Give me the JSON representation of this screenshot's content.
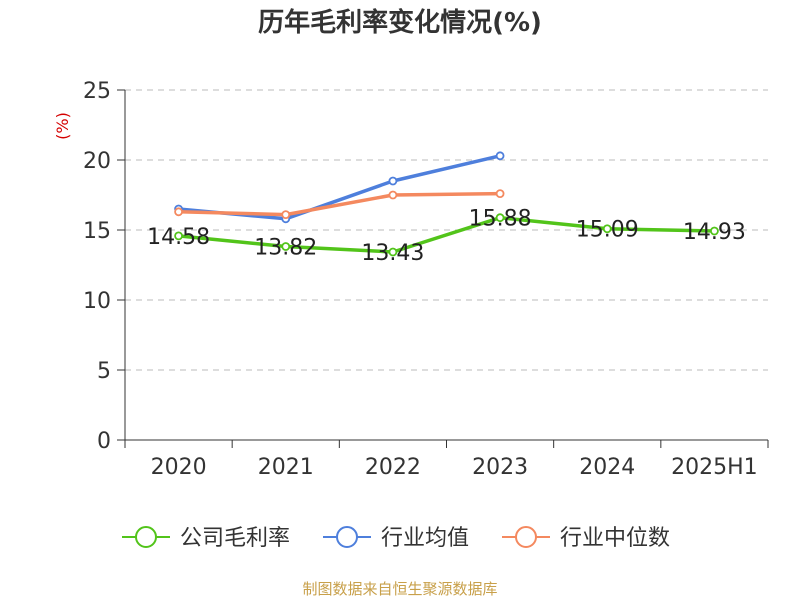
{
  "source_note": "制图数据来自恒生聚源数据库",
  "chart_data": {
    "type": "line",
    "title": "历年毛利率变化情况(%)",
    "ylabel": "(%)",
    "categories": [
      "2020",
      "2021",
      "2022",
      "2023",
      "2024",
      "2025H1"
    ],
    "ylim": [
      0,
      25
    ],
    "yticks": [
      0,
      5,
      10,
      15,
      20,
      25
    ],
    "grid": true,
    "legend_position": "bottom",
    "series": [
      {
        "name": "公司毛利率",
        "color": "#52c41a",
        "values": [
          14.58,
          13.82,
          13.43,
          15.88,
          15.09,
          14.93
        ],
        "labels": [
          "14.58",
          "13.82",
          "13.43",
          "15.88",
          "15.09",
          "14.93"
        ]
      },
      {
        "name": "行业均值",
        "color": "#4e7fdc",
        "values": [
          16.5,
          15.8,
          18.5,
          20.3,
          null,
          null
        ]
      },
      {
        "name": "行业中位数",
        "color": "#f4895f",
        "values": [
          16.3,
          16.1,
          17.5,
          17.6,
          null,
          null
        ]
      }
    ],
    "unit_color": "#d40000"
  }
}
